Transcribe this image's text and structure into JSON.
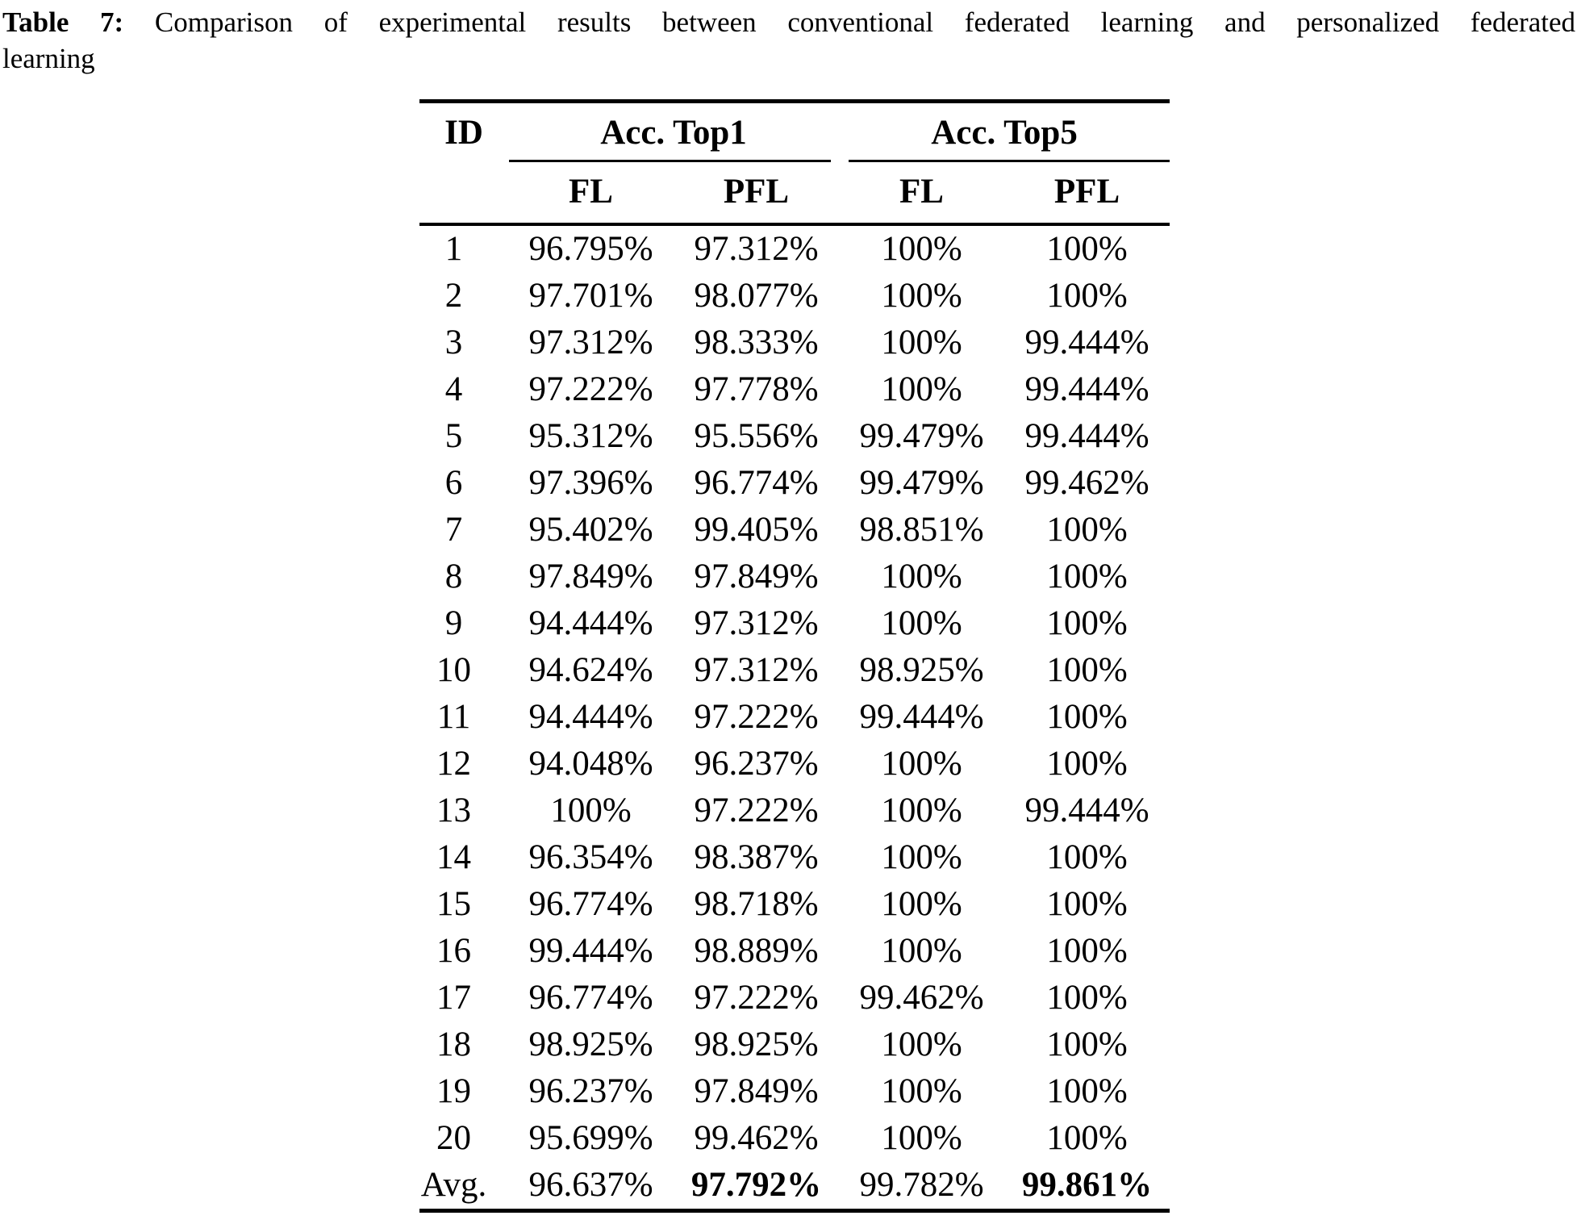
{
  "caption": {
    "label": "Table 7:",
    "text_line1": "Comparison of experimental results between conventional federated learning and personalized federated",
    "text_line2": "learning"
  },
  "table": {
    "id_header": "ID",
    "group_headers": [
      "Acc. Top1",
      "Acc. Top5"
    ],
    "sub_headers": [
      "FL",
      "PFL",
      "FL",
      "PFL"
    ],
    "rows": [
      {
        "id": "1",
        "values": [
          "96.795%",
          "97.312%",
          "100%",
          "100%"
        ]
      },
      {
        "id": "2",
        "values": [
          "97.701%",
          "98.077%",
          "100%",
          "100%"
        ]
      },
      {
        "id": "3",
        "values": [
          "97.312%",
          "98.333%",
          "100%",
          "99.444%"
        ]
      },
      {
        "id": "4",
        "values": [
          "97.222%",
          "97.778%",
          "100%",
          "99.444%"
        ]
      },
      {
        "id": "5",
        "values": [
          "95.312%",
          "95.556%",
          "99.479%",
          "99.444%"
        ]
      },
      {
        "id": "6",
        "values": [
          "97.396%",
          "96.774%",
          "99.479%",
          "99.462%"
        ]
      },
      {
        "id": "7",
        "values": [
          "95.402%",
          "99.405%",
          "98.851%",
          "100%"
        ]
      },
      {
        "id": "8",
        "values": [
          "97.849%",
          "97.849%",
          "100%",
          "100%"
        ]
      },
      {
        "id": "9",
        "values": [
          "94.444%",
          "97.312%",
          "100%",
          "100%"
        ]
      },
      {
        "id": "10",
        "values": [
          "94.624%",
          "97.312%",
          "98.925%",
          "100%"
        ]
      },
      {
        "id": "11",
        "values": [
          "94.444%",
          "97.222%",
          "99.444%",
          "100%"
        ]
      },
      {
        "id": "12",
        "values": [
          "94.048%",
          "96.237%",
          "100%",
          "100%"
        ]
      },
      {
        "id": "13",
        "values": [
          "100%",
          "97.222%",
          "100%",
          "99.444%"
        ]
      },
      {
        "id": "14",
        "values": [
          "96.354%",
          "98.387%",
          "100%",
          "100%"
        ]
      },
      {
        "id": "15",
        "values": [
          "96.774%",
          "98.718%",
          "100%",
          "100%"
        ]
      },
      {
        "id": "16",
        "values": [
          "99.444%",
          "98.889%",
          "100%",
          "100%"
        ]
      },
      {
        "id": "17",
        "values": [
          "96.774%",
          "97.222%",
          "99.462%",
          "100%"
        ]
      },
      {
        "id": "18",
        "values": [
          "98.925%",
          "98.925%",
          "100%",
          "100%"
        ]
      },
      {
        "id": "19",
        "values": [
          "96.237%",
          "97.849%",
          "100%",
          "100%"
        ]
      },
      {
        "id": "20",
        "values": [
          "95.699%",
          "99.462%",
          "100%",
          "100%"
        ]
      },
      {
        "id": "Avg.",
        "values": [
          "96.637%",
          "97.792%",
          "99.782%",
          "99.861%"
        ],
        "bold": [
          1,
          3
        ]
      }
    ]
  }
}
